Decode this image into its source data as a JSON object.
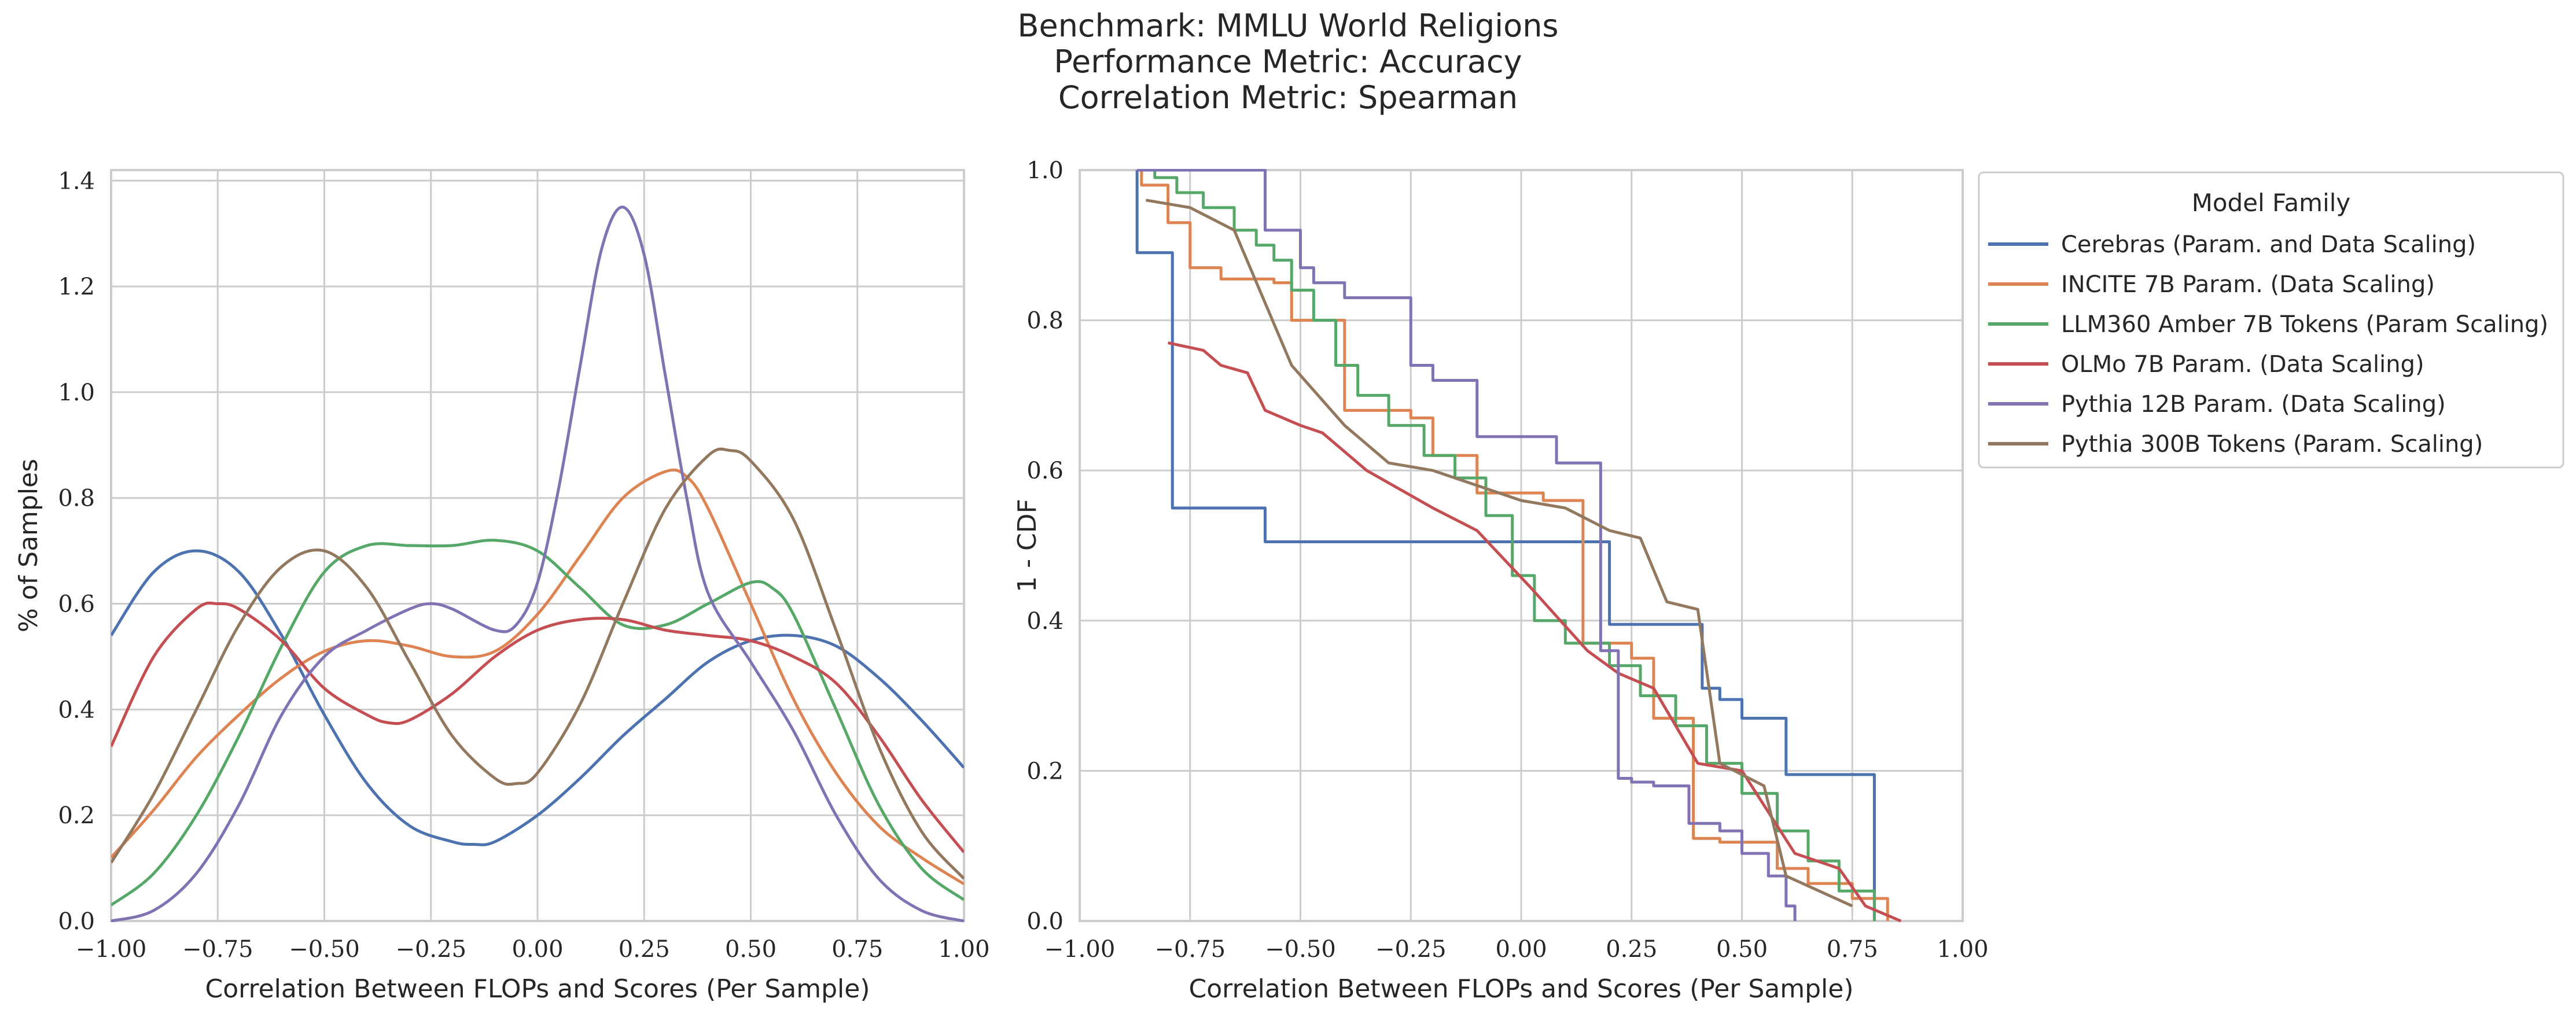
{
  "suptitle": {
    "line1": "Benchmark: MMLU World Religions",
    "line2": "Performance Metric: Accuracy",
    "line3": "Correlation Metric: Spearman"
  },
  "colors": {
    "Cerebras": "#4c72b0",
    "INCITE": "#dd8452",
    "LLM360": "#55a868",
    "OLMo": "#c44e52",
    "Pythia12B": "#8172b3",
    "Pythia300B": "#937860",
    "grid": "#cccccc",
    "spine": "#cccccc"
  },
  "chart_data": [
    {
      "type": "line",
      "subtype": "kde",
      "xlabel": "Correlation Between FLOPs and Scores (Per Sample)",
      "ylabel": "% of Samples",
      "xlim": [
        -1.0,
        1.0
      ],
      "ylim": [
        0.0,
        1.42
      ],
      "xticks": [
        "−1.00",
        "−0.75",
        "−0.50",
        "−0.25",
        "0.00",
        "0.25",
        "0.50",
        "0.75",
        "1.00"
      ],
      "yticks": [
        "0.0",
        "0.2",
        "0.4",
        "0.6",
        "0.8",
        "1.0",
        "1.2",
        "1.4"
      ],
      "grid": true,
      "series": [
        {
          "name": "Cerebras (Param. and Data Scaling)",
          "color_key": "Cerebras",
          "x": [
            -1.0,
            -0.9,
            -0.8,
            -0.7,
            -0.6,
            -0.5,
            -0.4,
            -0.3,
            -0.2,
            -0.15,
            -0.1,
            0.0,
            0.1,
            0.2,
            0.3,
            0.4,
            0.5,
            0.6,
            0.7,
            0.8,
            0.9,
            1.0
          ],
          "y": [
            0.54,
            0.66,
            0.7,
            0.66,
            0.54,
            0.39,
            0.26,
            0.18,
            0.15,
            0.145,
            0.15,
            0.2,
            0.27,
            0.35,
            0.42,
            0.49,
            0.53,
            0.54,
            0.52,
            0.46,
            0.38,
            0.29
          ]
        },
        {
          "name": "INCITE 7B Param. (Data Scaling)",
          "color_key": "INCITE",
          "x": [
            -1.0,
            -0.9,
            -0.8,
            -0.7,
            -0.6,
            -0.5,
            -0.4,
            -0.3,
            -0.2,
            -0.1,
            0.0,
            0.1,
            0.2,
            0.3,
            0.35,
            0.4,
            0.5,
            0.6,
            0.7,
            0.8,
            0.9,
            1.0
          ],
          "y": [
            0.12,
            0.21,
            0.31,
            0.39,
            0.46,
            0.51,
            0.53,
            0.52,
            0.5,
            0.51,
            0.58,
            0.69,
            0.8,
            0.85,
            0.84,
            0.78,
            0.6,
            0.42,
            0.28,
            0.18,
            0.12,
            0.07
          ]
        },
        {
          "name": "LLM360 Amber 7B Tokens (Param Scaling)",
          "color_key": "LLM360",
          "x": [
            -1.0,
            -0.9,
            -0.8,
            -0.7,
            -0.6,
            -0.5,
            -0.4,
            -0.3,
            -0.2,
            -0.1,
            0.0,
            0.1,
            0.2,
            0.3,
            0.4,
            0.5,
            0.55,
            0.6,
            0.7,
            0.8,
            0.9,
            1.0
          ],
          "y": [
            0.03,
            0.09,
            0.2,
            0.35,
            0.52,
            0.66,
            0.71,
            0.71,
            0.71,
            0.72,
            0.7,
            0.63,
            0.56,
            0.56,
            0.6,
            0.64,
            0.63,
            0.58,
            0.4,
            0.22,
            0.1,
            0.04
          ]
        },
        {
          "name": "OLMo 7B Param. (Data Scaling)",
          "color_key": "OLMo",
          "x": [
            -1.0,
            -0.9,
            -0.8,
            -0.75,
            -0.7,
            -0.6,
            -0.5,
            -0.4,
            -0.35,
            -0.3,
            -0.2,
            -0.1,
            0.0,
            0.1,
            0.2,
            0.3,
            0.4,
            0.5,
            0.6,
            0.7,
            0.8,
            0.9,
            1.0
          ],
          "y": [
            0.33,
            0.5,
            0.59,
            0.6,
            0.59,
            0.53,
            0.44,
            0.39,
            0.375,
            0.38,
            0.43,
            0.5,
            0.55,
            0.57,
            0.57,
            0.55,
            0.54,
            0.53,
            0.5,
            0.45,
            0.35,
            0.23,
            0.13
          ]
        },
        {
          "name": "Pythia 12B Param. (Data Scaling)",
          "color_key": "Pythia12B",
          "x": [
            -1.0,
            -0.9,
            -0.8,
            -0.7,
            -0.6,
            -0.5,
            -0.4,
            -0.3,
            -0.25,
            -0.2,
            -0.1,
            -0.05,
            0.0,
            0.05,
            0.1,
            0.15,
            0.2,
            0.25,
            0.3,
            0.35,
            0.4,
            0.5,
            0.6,
            0.7,
            0.8,
            0.9,
            1.0
          ],
          "y": [
            0.0,
            0.02,
            0.09,
            0.22,
            0.39,
            0.5,
            0.55,
            0.59,
            0.6,
            0.59,
            0.55,
            0.56,
            0.64,
            0.82,
            1.05,
            1.27,
            1.35,
            1.26,
            1.03,
            0.8,
            0.62,
            0.49,
            0.36,
            0.2,
            0.08,
            0.02,
            0.0
          ]
        },
        {
          "name": "Pythia 300B Tokens (Param. Scaling)",
          "color_key": "Pythia300B",
          "x": [
            -1.0,
            -0.9,
            -0.8,
            -0.7,
            -0.6,
            -0.5,
            -0.4,
            -0.3,
            -0.2,
            -0.1,
            -0.05,
            0.0,
            0.1,
            0.2,
            0.3,
            0.4,
            0.45,
            0.5,
            0.6,
            0.7,
            0.8,
            0.9,
            1.0
          ],
          "y": [
            0.11,
            0.24,
            0.4,
            0.56,
            0.67,
            0.7,
            0.63,
            0.49,
            0.35,
            0.27,
            0.26,
            0.28,
            0.41,
            0.6,
            0.78,
            0.88,
            0.89,
            0.87,
            0.76,
            0.55,
            0.33,
            0.17,
            0.08
          ]
        }
      ]
    },
    {
      "type": "line",
      "subtype": "step",
      "xlabel": "Correlation Between FLOPs and Scores (Per Sample)",
      "ylabel": "1 - CDF",
      "xlim": [
        -1.0,
        1.0
      ],
      "ylim": [
        0.0,
        1.0
      ],
      "xticks": [
        "−1.00",
        "−0.75",
        "−0.50",
        "−0.25",
        "0.00",
        "0.25",
        "0.50",
        "0.75",
        "1.00"
      ],
      "yticks": [
        "0.0",
        "0.2",
        "0.4",
        "0.6",
        "0.8",
        "1.0"
      ],
      "grid": true,
      "legend_title": "Model Family",
      "legend_position": "outside right",
      "series": [
        {
          "name": "Cerebras (Param. and Data Scaling)",
          "color_key": "Cerebras",
          "x": [
            -0.87,
            -0.87,
            -0.79,
            -0.79,
            -0.58,
            -0.58,
            0.2,
            0.2,
            0.41,
            0.41,
            0.45,
            0.45,
            0.5,
            0.5,
            0.6,
            0.6,
            0.8,
            0.8
          ],
          "y": [
            1.0,
            0.89,
            0.89,
            0.55,
            0.55,
            0.505,
            0.505,
            0.395,
            0.395,
            0.31,
            0.31,
            0.295,
            0.295,
            0.27,
            0.27,
            0.195,
            0.195,
            0.0
          ]
        },
        {
          "name": "INCITE 7B Param. (Data Scaling)",
          "color_key": "INCITE",
          "x": [
            -0.86,
            -0.86,
            -0.8,
            -0.8,
            -0.75,
            -0.75,
            -0.68,
            -0.68,
            -0.56,
            -0.56,
            -0.52,
            -0.52,
            -0.4,
            -0.4,
            -0.25,
            -0.25,
            -0.2,
            -0.2,
            -0.1,
            -0.1,
            0.05,
            0.05,
            0.14,
            0.14,
            0.25,
            0.25,
            0.3,
            0.3,
            0.39,
            0.39,
            0.45,
            0.45,
            0.58,
            0.58,
            0.65,
            0.65,
            0.75,
            0.75,
            0.83,
            0.83
          ],
          "y": [
            1.0,
            0.98,
            0.98,
            0.93,
            0.93,
            0.87,
            0.87,
            0.855,
            0.855,
            0.85,
            0.85,
            0.8,
            0.8,
            0.68,
            0.68,
            0.67,
            0.67,
            0.62,
            0.62,
            0.57,
            0.57,
            0.56,
            0.56,
            0.37,
            0.37,
            0.35,
            0.35,
            0.27,
            0.27,
            0.11,
            0.11,
            0.105,
            0.105,
            0.07,
            0.07,
            0.05,
            0.05,
            0.03,
            0.03,
            0.0
          ]
        },
        {
          "name": "LLM360 Amber 7B Tokens (Param Scaling)",
          "color_key": "LLM360",
          "x": [
            -0.83,
            -0.83,
            -0.78,
            -0.78,
            -0.72,
            -0.72,
            -0.65,
            -0.65,
            -0.6,
            -0.6,
            -0.56,
            -0.56,
            -0.52,
            -0.52,
            -0.47,
            -0.47,
            -0.42,
            -0.42,
            -0.37,
            -0.37,
            -0.3,
            -0.3,
            -0.22,
            -0.22,
            -0.15,
            -0.15,
            -0.08,
            -0.08,
            -0.02,
            -0.02,
            0.03,
            0.03,
            0.1,
            0.1,
            0.2,
            0.2,
            0.27,
            0.27,
            0.35,
            0.35,
            0.42,
            0.42,
            0.5,
            0.5,
            0.58,
            0.58,
            0.65,
            0.65,
            0.72,
            0.72,
            0.8,
            0.8
          ],
          "y": [
            1.0,
            0.99,
            0.99,
            0.97,
            0.97,
            0.95,
            0.95,
            0.92,
            0.92,
            0.9,
            0.9,
            0.88,
            0.88,
            0.84,
            0.84,
            0.8,
            0.8,
            0.74,
            0.74,
            0.7,
            0.7,
            0.66,
            0.66,
            0.62,
            0.62,
            0.59,
            0.59,
            0.54,
            0.54,
            0.46,
            0.46,
            0.4,
            0.4,
            0.37,
            0.37,
            0.34,
            0.34,
            0.3,
            0.3,
            0.26,
            0.26,
            0.21,
            0.21,
            0.17,
            0.17,
            0.12,
            0.12,
            0.08,
            0.08,
            0.04,
            0.04,
            0.0
          ]
        },
        {
          "name": "OLMo 7B Param. (Data Scaling)",
          "color_key": "OLMo",
          "x": [
            -0.8,
            -0.8,
            -0.72,
            -0.72,
            -0.68,
            -0.68,
            -0.62,
            -0.62,
            -0.58,
            -0.58,
            -0.5,
            -0.5,
            -0.45,
            -0.45,
            -0.35,
            -0.35,
            -0.2,
            -0.2,
            -0.1,
            -0.1,
            0.02,
            0.02,
            0.15,
            0.15,
            0.22,
            0.22,
            0.3,
            0.3,
            0.4,
            0.4,
            0.5,
            0.5,
            0.62,
            0.62,
            0.72,
            0.72,
            0.78,
            0.78,
            0.86,
            0.86
          ],
          "y": [
            0.77,
            0.77,
            0.76,
            0.76,
            0.74,
            0.74,
            0.73,
            0.73,
            0.68,
            0.68,
            0.66,
            0.66,
            0.65,
            0.65,
            0.6,
            0.6,
            0.55,
            0.55,
            0.52,
            0.52,
            0.445,
            0.445,
            0.36,
            0.36,
            0.33,
            0.33,
            0.31,
            0.31,
            0.21,
            0.21,
            0.2,
            0.2,
            0.09,
            0.09,
            0.07,
            0.07,
            0.02,
            0.02,
            0.0,
            0.0
          ]
        },
        {
          "name": "Pythia 12B Param. (Data Scaling)",
          "color_key": "Pythia12B",
          "x": [
            -0.87,
            -0.87,
            -0.58,
            -0.58,
            -0.5,
            -0.5,
            -0.47,
            -0.47,
            -0.4,
            -0.4,
            -0.25,
            -0.25,
            -0.2,
            -0.2,
            -0.1,
            -0.1,
            0.08,
            0.08,
            0.18,
            0.18,
            0.22,
            0.22,
            0.25,
            0.25,
            0.3,
            0.3,
            0.38,
            0.38,
            0.45,
            0.45,
            0.5,
            0.5,
            0.56,
            0.56,
            0.6,
            0.6,
            0.62,
            0.62
          ],
          "y": [
            1.0,
            1.0,
            1.0,
            0.92,
            0.92,
            0.87,
            0.87,
            0.85,
            0.85,
            0.83,
            0.83,
            0.74,
            0.74,
            0.72,
            0.72,
            0.645,
            0.645,
            0.61,
            0.61,
            0.36,
            0.36,
            0.19,
            0.19,
            0.185,
            0.185,
            0.18,
            0.18,
            0.13,
            0.13,
            0.12,
            0.12,
            0.09,
            0.09,
            0.06,
            0.06,
            0.02,
            0.02,
            0.0
          ]
        },
        {
          "name": "Pythia 300B Tokens (Param. Scaling)",
          "color_key": "Pythia300B",
          "x": [
            -0.85,
            -0.85,
            -0.75,
            -0.75,
            -0.65,
            -0.65,
            -0.52,
            -0.52,
            -0.4,
            -0.4,
            -0.3,
            -0.3,
            -0.2,
            -0.2,
            -0.1,
            -0.1,
            0.0,
            0.0,
            0.1,
            0.1,
            0.2,
            0.2,
            0.27,
            0.27,
            0.33,
            0.33,
            0.4,
            0.4,
            0.45,
            0.45,
            0.55,
            0.55,
            0.6,
            0.6,
            0.75,
            0.75
          ],
          "y": [
            0.96,
            0.96,
            0.95,
            0.95,
            0.92,
            0.92,
            0.74,
            0.74,
            0.66,
            0.66,
            0.61,
            0.61,
            0.6,
            0.6,
            0.58,
            0.58,
            0.56,
            0.56,
            0.55,
            0.55,
            0.52,
            0.52,
            0.51,
            0.51,
            0.425,
            0.425,
            0.415,
            0.415,
            0.21,
            0.21,
            0.18,
            0.18,
            0.06,
            0.06,
            0.02,
            0.02
          ]
        }
      ]
    }
  ]
}
